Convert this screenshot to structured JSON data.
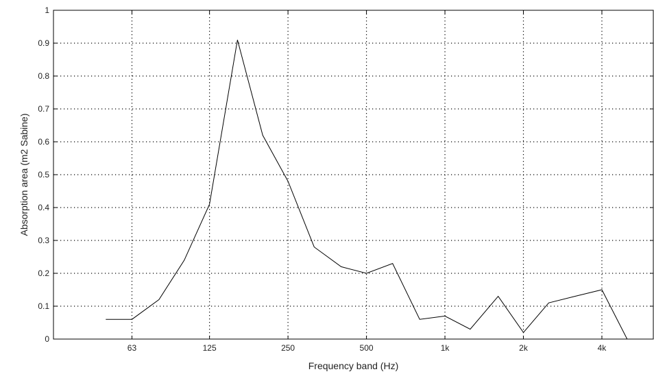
{
  "chart_data": {
    "type": "line",
    "xlabel": "Frequency band (Hz)",
    "ylabel": "Absorption area (m2 Sabine)",
    "xlim": [
      31.5,
      6300
    ],
    "ylim": [
      0,
      1
    ],
    "x_scale": "log2",
    "grid": true,
    "x_ticks": [
      {
        "value": 63,
        "label": "63"
      },
      {
        "value": 125,
        "label": "125"
      },
      {
        "value": 250,
        "label": "250"
      },
      {
        "value": 500,
        "label": "500"
      },
      {
        "value": 1000,
        "label": "1k"
      },
      {
        "value": 2000,
        "label": "2k"
      },
      {
        "value": 4000,
        "label": "4k"
      }
    ],
    "y_ticks": [
      {
        "value": 0,
        "label": "0"
      },
      {
        "value": 0.1,
        "label": "0.1"
      },
      {
        "value": 0.2,
        "label": "0.2"
      },
      {
        "value": 0.3,
        "label": "0.3"
      },
      {
        "value": 0.4,
        "label": "0.4"
      },
      {
        "value": 0.5,
        "label": "0.5"
      },
      {
        "value": 0.6,
        "label": "0.6"
      },
      {
        "value": 0.7,
        "label": "0.7"
      },
      {
        "value": 0.8,
        "label": "0.8"
      },
      {
        "value": 0.9,
        "label": "0.9"
      },
      {
        "value": 1,
        "label": "1"
      }
    ],
    "series": [
      {
        "color": "#000000",
        "x": [
          50,
          63,
          80,
          100,
          125,
          160,
          200,
          250,
          315,
          400,
          500,
          630,
          800,
          1000,
          1250,
          1600,
          2000,
          2500,
          3150,
          4000,
          5000
        ],
        "y": [
          0.06,
          0.06,
          0.12,
          0.24,
          0.41,
          0.91,
          0.62,
          0.48,
          0.28,
          0.22,
          0.2,
          0.23,
          0.06,
          0.07,
          0.03,
          0.13,
          0.02,
          0.11,
          0.13,
          0.15,
          0.0
        ]
      }
    ]
  }
}
